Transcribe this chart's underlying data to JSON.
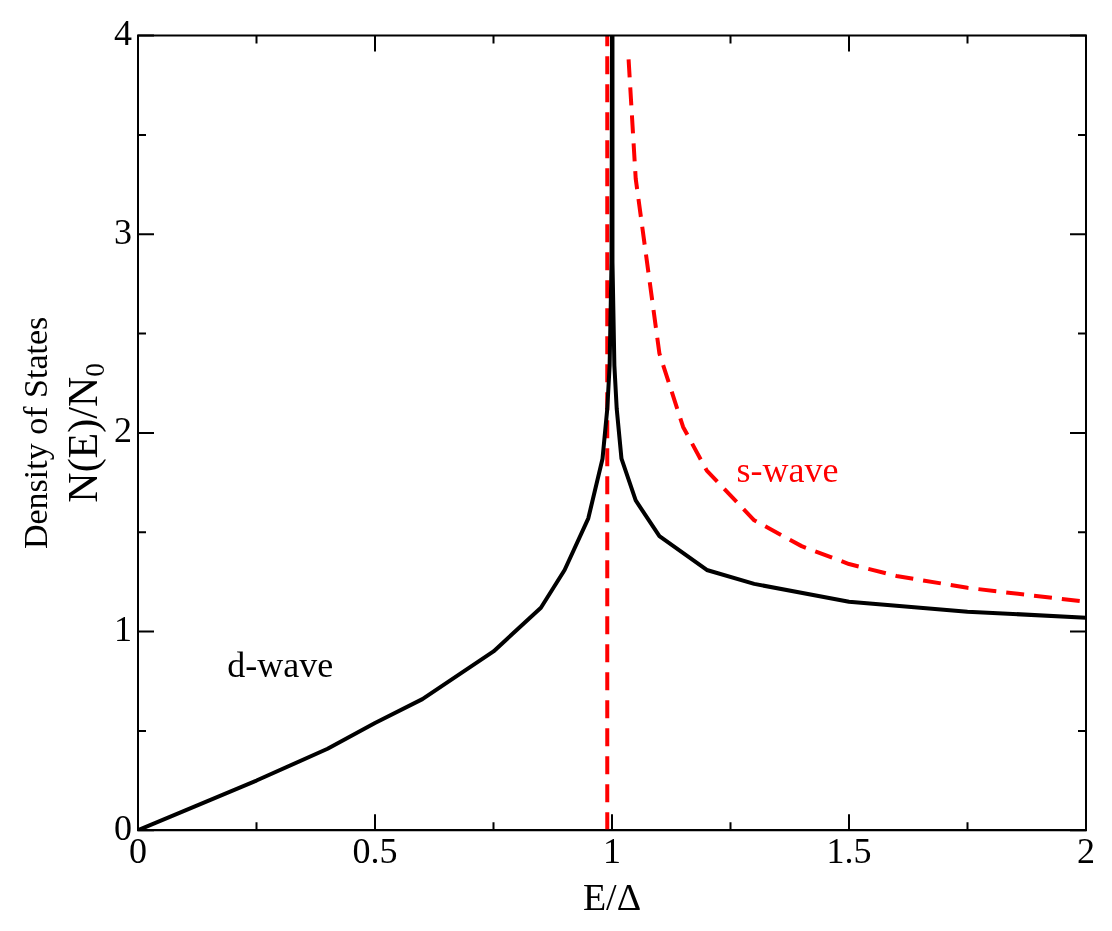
{
  "chart_data": {
    "type": "line",
    "xlabel": "E/Δ",
    "ylabel": "Density of States\nN(E)/N$_{0}$",
    "xlim": [
      0,
      2
    ],
    "ylim": [
      0,
      4
    ],
    "xticks": [
      0,
      {
        "value": 0.25,
        "label": null
      },
      0.5,
      {
        "value": 0.75,
        "label": null
      },
      1,
      {
        "value": 1.25,
        "label": null
      },
      1.5,
      {
        "value": 1.75,
        "label": null
      },
      2
    ],
    "yticks": [
      0,
      {
        "value": 0.5,
        "label": null
      },
      1,
      {
        "value": 1.5,
        "label": null
      },
      2,
      {
        "value": 2.5,
        "label": null
      },
      3,
      {
        "value": 3.5,
        "label": null
      },
      4
    ],
    "grid": false,
    "legend": false,
    "marker": "none",
    "series": [
      {
        "name": "d-wave",
        "color": "#000000",
        "line_style": "solid",
        "x": [
          0,
          0.1,
          0.25,
          0.4,
          0.5,
          0.6,
          0.75,
          0.85,
          0.9,
          0.95,
          0.98,
          0.99,
          0.995,
          0.999,
          1,
          1.001,
          1.005,
          1.01,
          1.02,
          1.05,
          1.1,
          1.2,
          1.3,
          1.5,
          1.75,
          2
        ],
        "values": [
          0,
          0.1,
          0.25,
          0.41,
          0.54,
          0.66,
          0.9,
          1.12,
          1.31,
          1.57,
          1.87,
          2.12,
          2.34,
          2.86,
          4,
          2.86,
          2.34,
          2.12,
          1.87,
          1.66,
          1.48,
          1.31,
          1.24,
          1.15,
          1.1,
          1.07
        ]
      },
      {
        "name": "s-wave",
        "color": "#ff0000",
        "line_style": "dashed",
        "x": [
          0.99,
          0.99,
          1.0,
          1.035,
          1.05,
          1.1,
          1.15,
          1.2,
          1.3,
          1.4,
          1.5,
          1.6,
          1.75,
          2
        ],
        "values": [
          0,
          4,
          null,
          3.88,
          3.28,
          2.4,
          2.03,
          1.81,
          1.56,
          1.43,
          1.34,
          1.28,
          1.22,
          1.15
        ]
      }
    ]
  }
}
